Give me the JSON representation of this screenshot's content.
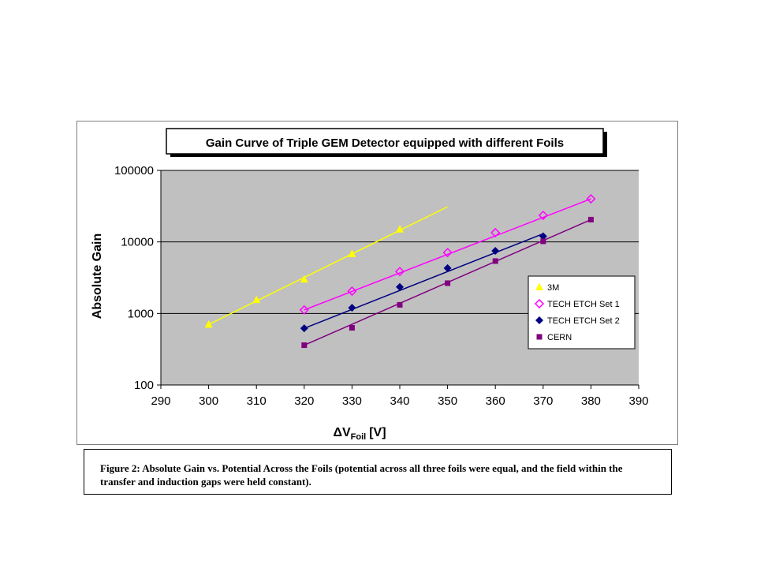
{
  "chart_data": {
    "type": "scatter",
    "title": "Gain Curve of Triple GEM Detector equipped with different Foils",
    "ylabel": "Absolute Gain",
    "xlabel_delta": "ΔV",
    "xlabel_sub": "Foil",
    "xlabel_unit": "[V]",
    "y_scale": "log",
    "xlim": [
      290,
      390
    ],
    "ylim": [
      100,
      100000
    ],
    "x_ticks": [
      290,
      300,
      310,
      320,
      330,
      340,
      350,
      360,
      370,
      380,
      390
    ],
    "y_ticks": [
      100,
      1000,
      10000,
      100000
    ],
    "y_tick_labels": [
      "100",
      "1000",
      "10000",
      "100000"
    ],
    "grid": "horizontal major lines",
    "legend_position": "right",
    "plot_background": "#c0c0c0",
    "series": [
      {
        "name": "3M",
        "color": "#ffff00",
        "marker": "triangle",
        "points": [
          [
            300,
            700
          ],
          [
            310,
            1550
          ],
          [
            320,
            3000
          ],
          [
            330,
            6800
          ],
          [
            340,
            15000
          ]
        ],
        "fit": [
          [
            300,
            700
          ],
          [
            350,
            31000
          ]
        ]
      },
      {
        "name": "TECH ETCH Set 1",
        "color": "#ff00ff",
        "marker": "open-diamond",
        "points": [
          [
            320,
            1120
          ],
          [
            330,
            2050
          ],
          [
            340,
            3850
          ],
          [
            350,
            7100
          ],
          [
            360,
            13500
          ],
          [
            370,
            23500
          ],
          [
            380,
            40000
          ]
        ],
        "fit": [
          [
            320,
            1120
          ],
          [
            380,
            40000
          ]
        ]
      },
      {
        "name": "TECH ETCH Set 2",
        "color": "#000080",
        "marker": "diamond",
        "points": [
          [
            320,
            620
          ],
          [
            330,
            1200
          ],
          [
            340,
            2350
          ],
          [
            350,
            4300
          ],
          [
            360,
            7500
          ],
          [
            370,
            12000
          ]
        ],
        "fit": [
          [
            320,
            620
          ],
          [
            370,
            13000
          ]
        ]
      },
      {
        "name": "CERN",
        "color": "#800080",
        "marker": "square",
        "points": [
          [
            320,
            360
          ],
          [
            330,
            630
          ],
          [
            340,
            1320
          ],
          [
            350,
            2650
          ],
          [
            360,
            5400
          ],
          [
            370,
            10200
          ],
          [
            380,
            20500
          ]
        ],
        "fit": [
          [
            320,
            360
          ],
          [
            380,
            20500
          ]
        ]
      }
    ]
  },
  "caption": "Figure 2:  Absolute Gain vs. Potential Across the Foils (potential across all three foils were equal, and the field within the transfer and induction gaps were held constant)."
}
